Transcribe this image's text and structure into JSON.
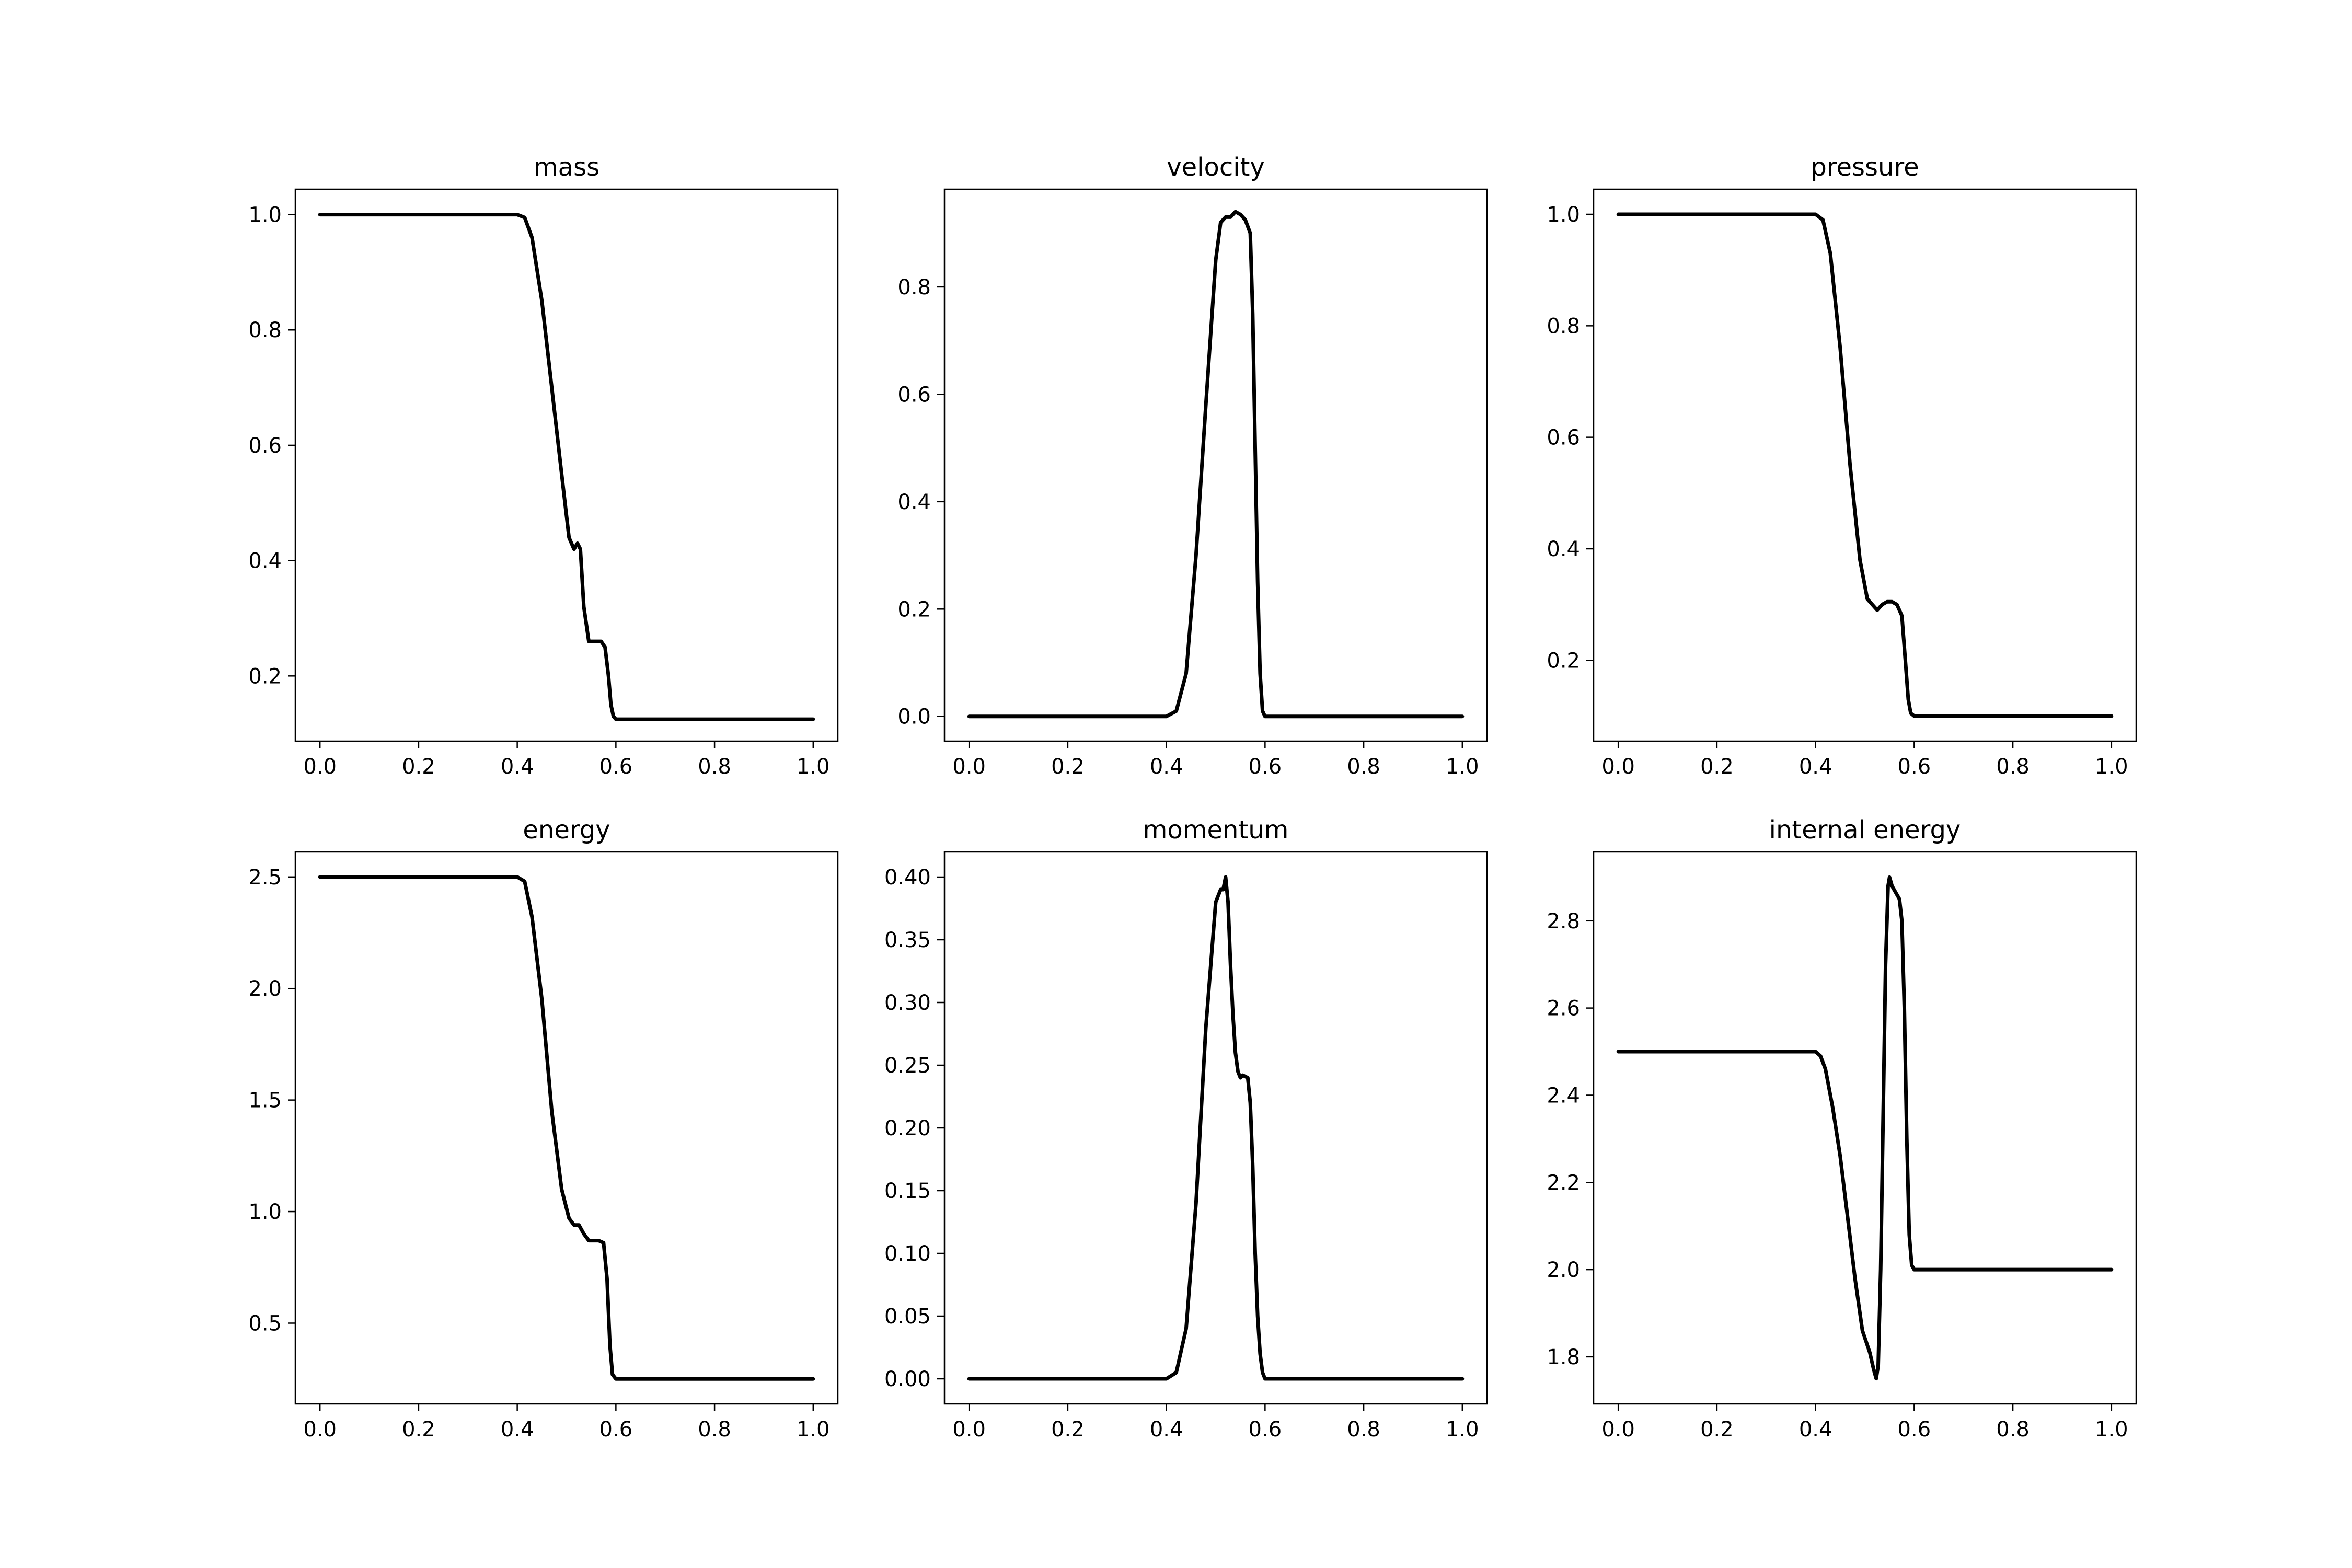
{
  "chart_data": [
    {
      "type": "line",
      "title": "mass",
      "xlim": [
        -0.05,
        1.05
      ],
      "ylim": [
        0.087,
        1.044
      ],
      "xticks": [
        0.0,
        0.2,
        0.4,
        0.6,
        0.8,
        1.0
      ],
      "yticks": [
        0.2,
        0.4,
        0.6,
        0.8,
        1.0
      ],
      "x_tick_labels": [
        "0.0",
        "0.2",
        "0.4",
        "0.6",
        "0.8",
        "1.0"
      ],
      "y_tick_labels": [
        "0.2",
        "0.4",
        "0.6",
        "0.8",
        "1.0"
      ],
      "series": [
        {
          "color": "#000000",
          "x": [
            0.0,
            0.4,
            0.415,
            0.43,
            0.45,
            0.47,
            0.49,
            0.505,
            0.515,
            0.522,
            0.528,
            0.535,
            0.545,
            0.56,
            0.57,
            0.578,
            0.585,
            0.59,
            0.595,
            0.6,
            1.0
          ],
          "y": [
            1.0,
            1.0,
            0.995,
            0.96,
            0.85,
            0.7,
            0.55,
            0.44,
            0.42,
            0.43,
            0.42,
            0.32,
            0.26,
            0.26,
            0.26,
            0.25,
            0.2,
            0.15,
            0.13,
            0.125,
            0.125
          ]
        }
      ]
    },
    {
      "type": "line",
      "title": "velocity",
      "xlim": [
        -0.05,
        1.05
      ],
      "ylim": [
        -0.046,
        0.982
      ],
      "xticks": [
        0.0,
        0.2,
        0.4,
        0.6,
        0.8,
        1.0
      ],
      "yticks": [
        0.0,
        0.2,
        0.4,
        0.6,
        0.8
      ],
      "x_tick_labels": [
        "0.0",
        "0.2",
        "0.4",
        "0.6",
        "0.8",
        "1.0"
      ],
      "y_tick_labels": [
        "0.0",
        "0.2",
        "0.4",
        "0.6",
        "0.8"
      ],
      "series": [
        {
          "color": "#000000",
          "x": [
            0.0,
            0.4,
            0.42,
            0.44,
            0.46,
            0.48,
            0.5,
            0.51,
            0.52,
            0.53,
            0.54,
            0.55,
            0.56,
            0.57,
            0.575,
            0.58,
            0.585,
            0.59,
            0.595,
            0.6,
            1.0
          ],
          "y": [
            0.0,
            0.0,
            0.01,
            0.08,
            0.3,
            0.58,
            0.85,
            0.92,
            0.93,
            0.93,
            0.94,
            0.935,
            0.925,
            0.9,
            0.75,
            0.5,
            0.25,
            0.08,
            0.01,
            0.0,
            0.0
          ]
        }
      ]
    },
    {
      "type": "line",
      "title": "pressure",
      "xlim": [
        -0.05,
        1.05
      ],
      "ylim": [
        0.055,
        1.045
      ],
      "xticks": [
        0.0,
        0.2,
        0.4,
        0.6,
        0.8,
        1.0
      ],
      "yticks": [
        0.2,
        0.4,
        0.6,
        0.8,
        1.0
      ],
      "x_tick_labels": [
        "0.0",
        "0.2",
        "0.4",
        "0.6",
        "0.8",
        "1.0"
      ],
      "y_tick_labels": [
        "0.2",
        "0.4",
        "0.6",
        "0.8",
        "1.0"
      ],
      "series": [
        {
          "color": "#000000",
          "x": [
            0.0,
            0.4,
            0.415,
            0.43,
            0.45,
            0.47,
            0.49,
            0.505,
            0.515,
            0.525,
            0.535,
            0.545,
            0.555,
            0.565,
            0.575,
            0.582,
            0.588,
            0.593,
            0.6,
            1.0
          ],
          "y": [
            1.0,
            1.0,
            0.99,
            0.93,
            0.76,
            0.55,
            0.38,
            0.31,
            0.3,
            0.29,
            0.3,
            0.305,
            0.305,
            0.3,
            0.28,
            0.2,
            0.13,
            0.105,
            0.1,
            0.1
          ]
        }
      ]
    },
    {
      "type": "line",
      "title": "energy",
      "xlim": [
        -0.05,
        1.05
      ],
      "ylim": [
        0.138,
        2.612
      ],
      "xticks": [
        0.0,
        0.2,
        0.4,
        0.6,
        0.8,
        1.0
      ],
      "yticks": [
        0.5,
        1.0,
        1.5,
        2.0,
        2.5
      ],
      "x_tick_labels": [
        "0.0",
        "0.2",
        "0.4",
        "0.6",
        "0.8",
        "1.0"
      ],
      "y_tick_labels": [
        "0.5",
        "1.0",
        "1.5",
        "2.0",
        "2.5"
      ],
      "series": [
        {
          "color": "#000000",
          "x": [
            0.0,
            0.4,
            0.415,
            0.43,
            0.45,
            0.47,
            0.49,
            0.505,
            0.515,
            0.525,
            0.535,
            0.545,
            0.555,
            0.565,
            0.575,
            0.582,
            0.588,
            0.593,
            0.6,
            1.0
          ],
          "y": [
            2.5,
            2.5,
            2.48,
            2.32,
            1.95,
            1.45,
            1.1,
            0.97,
            0.94,
            0.94,
            0.9,
            0.87,
            0.87,
            0.87,
            0.86,
            0.7,
            0.4,
            0.27,
            0.25,
            0.25
          ]
        }
      ]
    },
    {
      "type": "line",
      "title": "momentum",
      "xlim": [
        -0.05,
        1.05
      ],
      "ylim": [
        -0.02,
        0.42
      ],
      "xticks": [
        0.0,
        0.2,
        0.4,
        0.6,
        0.8,
        1.0
      ],
      "yticks": [
        0.0,
        0.05,
        0.1,
        0.15,
        0.2,
        0.25,
        0.3,
        0.35,
        0.4
      ],
      "x_tick_labels": [
        "0.0",
        "0.2",
        "0.4",
        "0.6",
        "0.8",
        "1.0"
      ],
      "y_tick_labels": [
        "0.00",
        "0.05",
        "0.10",
        "0.15",
        "0.20",
        "0.25",
        "0.30",
        "0.35",
        "0.40"
      ],
      "series": [
        {
          "color": "#000000",
          "x": [
            0.0,
            0.4,
            0.42,
            0.44,
            0.46,
            0.48,
            0.5,
            0.51,
            0.515,
            0.52,
            0.525,
            0.53,
            0.535,
            0.54,
            0.545,
            0.55,
            0.555,
            0.565,
            0.57,
            0.575,
            0.58,
            0.585,
            0.59,
            0.595,
            0.6,
            1.0
          ],
          "y": [
            0.0,
            0.0,
            0.005,
            0.04,
            0.14,
            0.28,
            0.38,
            0.39,
            0.39,
            0.4,
            0.38,
            0.33,
            0.29,
            0.26,
            0.245,
            0.24,
            0.242,
            0.24,
            0.22,
            0.17,
            0.1,
            0.05,
            0.02,
            0.005,
            0.0,
            0.0
          ]
        }
      ]
    },
    {
      "type": "line",
      "title": "internal energy",
      "xlim": [
        -0.05,
        1.05
      ],
      "ylim": [
        1.692,
        2.958
      ],
      "xticks": [
        0.0,
        0.2,
        0.4,
        0.6,
        0.8,
        1.0
      ],
      "yticks": [
        1.8,
        2.0,
        2.2,
        2.4,
        2.6,
        2.8
      ],
      "x_tick_labels": [
        "0.0",
        "0.2",
        "0.4",
        "0.6",
        "0.8",
        "1.0"
      ],
      "y_tick_labels": [
        "1.8",
        "2.0",
        "2.2",
        "2.4",
        "2.6",
        "2.8"
      ],
      "series": [
        {
          "color": "#000000",
          "x": [
            0.0,
            0.4,
            0.41,
            0.42,
            0.435,
            0.45,
            0.465,
            0.48,
            0.495,
            0.51,
            0.518,
            0.523,
            0.527,
            0.532,
            0.537,
            0.542,
            0.547,
            0.55,
            0.555,
            0.56,
            0.565,
            0.57,
            0.575,
            0.58,
            0.585,
            0.59,
            0.595,
            0.6,
            1.0
          ],
          "y": [
            2.5,
            2.5,
            2.49,
            2.46,
            2.37,
            2.26,
            2.12,
            1.98,
            1.86,
            1.81,
            1.77,
            1.75,
            1.78,
            2.0,
            2.35,
            2.7,
            2.88,
            2.9,
            2.88,
            2.87,
            2.86,
            2.85,
            2.8,
            2.6,
            2.3,
            2.08,
            2.01,
            2.0,
            2.0
          ]
        }
      ]
    }
  ]
}
